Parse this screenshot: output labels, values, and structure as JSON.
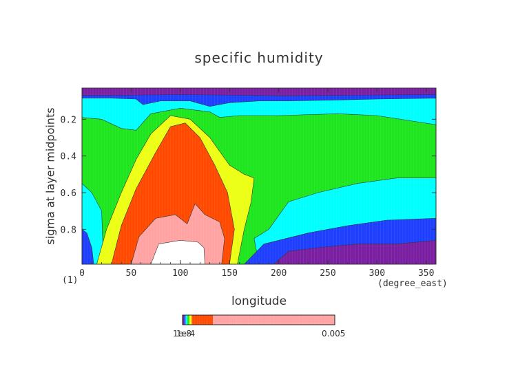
{
  "chart_data": {
    "type": "heatmap",
    "title": "specific humidity",
    "xlabel": "longitude",
    "ylabel": "sigma at layer midpoints",
    "x_unit": "(degree_east)",
    "y_unit": "(1)",
    "xlim": [
      0,
      360
    ],
    "ylim": [
      0.99,
      0.03
    ],
    "x_ticks": [
      "0",
      "50",
      "100",
      "150",
      "200",
      "250",
      "300",
      "350"
    ],
    "y_ticks": [
      "0.2",
      "0.4",
      "0.6",
      "0.8"
    ],
    "colorbar": {
      "min_label": "1e-8",
      "mid_label": "1e-4",
      "max_label": "0.005"
    },
    "contour_levels": [
      1e-08,
      1e-07,
      1e-06,
      1e-05,
      0.0001,
      0.0005,
      0.001,
      0.002,
      0.004
    ],
    "band_colors": [
      "#7b1fa2",
      "#1f3fff",
      "#00ffff",
      "#1ee61e",
      "#ecff14",
      "#ff4a00",
      "#ffa3a3",
      "#ffffff"
    ],
    "contours": {
      "top1": [
        [
          0,
          0.07
        ],
        [
          30,
          0.07
        ],
        [
          60,
          0.068
        ],
        [
          100,
          0.065
        ],
        [
          140,
          0.068
        ],
        [
          180,
          0.07
        ],
        [
          200,
          0.072
        ],
        [
          260,
          0.07
        ],
        [
          300,
          0.068
        ],
        [
          360,
          0.065
        ]
      ],
      "top2": [
        [
          0,
          0.085
        ],
        [
          30,
          0.085
        ],
        [
          55,
          0.09
        ],
        [
          62,
          0.12
        ],
        [
          80,
          0.1
        ],
        [
          110,
          0.1
        ],
        [
          130,
          0.13
        ],
        [
          150,
          0.11
        ],
        [
          180,
          0.1
        ],
        [
          210,
          0.1
        ],
        [
          260,
          0.095
        ],
        [
          300,
          0.09
        ],
        [
          360,
          0.085
        ]
      ],
      "cyan_green": [
        [
          0,
          0.19
        ],
        [
          20,
          0.2
        ],
        [
          40,
          0.25
        ],
        [
          55,
          0.26
        ],
        [
          70,
          0.17
        ],
        [
          100,
          0.14
        ],
        [
          130,
          0.16
        ],
        [
          140,
          0.19
        ],
        [
          160,
          0.18
        ],
        [
          200,
          0.18
        ],
        [
          260,
          0.17
        ],
        [
          300,
          0.18
        ],
        [
          360,
          0.23
        ]
      ],
      "green_yellow_outer": [
        [
          15,
          0.99
        ],
        [
          25,
          0.8
        ],
        [
          40,
          0.6
        ],
        [
          55,
          0.42
        ],
        [
          70,
          0.28
        ],
        [
          90,
          0.18
        ],
        [
          110,
          0.2
        ],
        [
          130,
          0.3
        ],
        [
          150,
          0.45
        ],
        [
          165,
          0.5
        ],
        [
          175,
          0.52
        ],
        [
          172,
          0.65
        ],
        [
          165,
          0.8
        ],
        [
          158,
          0.99
        ]
      ],
      "yellow_red_outer": [
        [
          30,
          0.99
        ],
        [
          40,
          0.78
        ],
        [
          55,
          0.58
        ],
        [
          75,
          0.38
        ],
        [
          90,
          0.24
        ],
        [
          105,
          0.22
        ],
        [
          120,
          0.3
        ],
        [
          135,
          0.45
        ],
        [
          148,
          0.6
        ],
        [
          155,
          0.8
        ],
        [
          150,
          0.99
        ]
      ],
      "red_pink": [
        [
          50,
          0.99
        ],
        [
          58,
          0.84
        ],
        [
          75,
          0.74
        ],
        [
          95,
          0.72
        ],
        [
          107,
          0.77
        ],
        [
          115,
          0.66
        ],
        [
          125,
          0.72
        ],
        [
          140,
          0.76
        ],
        [
          145,
          0.85
        ],
        [
          142,
          0.99
        ]
      ],
      "pink_white": [
        [
          70,
          0.99
        ],
        [
          78,
          0.88
        ],
        [
          100,
          0.86
        ],
        [
          118,
          0.87
        ],
        [
          124,
          0.9
        ],
        [
          125,
          0.99
        ]
      ],
      "green_cyan_right": [
        [
          180,
          0.99
        ],
        [
          175,
          0.85
        ],
        [
          190,
          0.8
        ],
        [
          210,
          0.65
        ],
        [
          240,
          0.6
        ],
        [
          280,
          0.55
        ],
        [
          320,
          0.52
        ],
        [
          360,
          0.52
        ]
      ],
      "cyan_blue_right": [
        [
          165,
          0.99
        ],
        [
          185,
          0.88
        ],
        [
          230,
          0.82
        ],
        [
          270,
          0.78
        ],
        [
          310,
          0.75
        ],
        [
          360,
          0.74
        ]
      ],
      "blue_purple_right": [
        [
          195,
          0.99
        ],
        [
          210,
          0.92
        ],
        [
          240,
          0.9
        ],
        [
          280,
          0.88
        ],
        [
          320,
          0.88
        ],
        [
          360,
          0.86
        ]
      ],
      "left_cyan": [
        [
          0,
          0.55
        ],
        [
          10,
          0.6
        ],
        [
          20,
          0.7
        ],
        [
          22,
          0.99
        ]
      ],
      "left_blue": [
        [
          0,
          0.8
        ],
        [
          5,
          0.82
        ],
        [
          10,
          0.9
        ],
        [
          12,
          0.99
        ]
      ]
    }
  }
}
